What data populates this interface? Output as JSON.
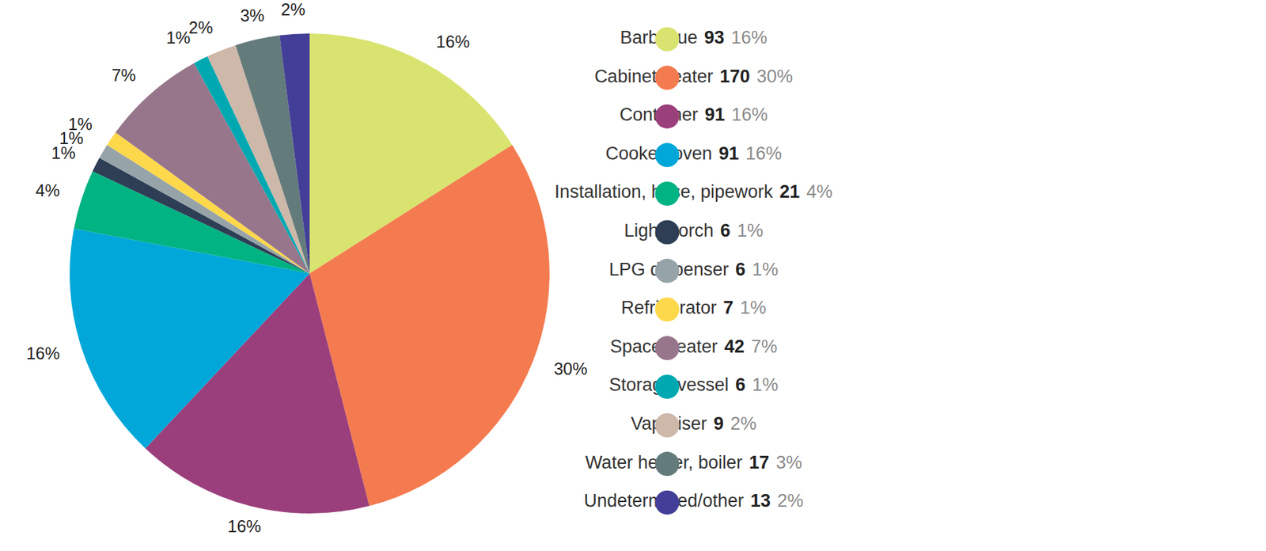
{
  "chart_data": {
    "type": "pie",
    "categories": [
      "Barbecue",
      "Cabinet heater",
      "Container",
      "Cooker, oven",
      "Installation, hose, pipework",
      "Light, torch",
      "LPG dispenser",
      "Refrigerator",
      "Space heater",
      "Storage vessel",
      "Vaporiser",
      "Water heater, boiler",
      "Undetermined/other"
    ],
    "values": [
      16,
      30,
      16,
      16,
      4,
      1,
      1,
      1,
      7,
      1,
      2,
      3,
      2
    ],
    "value_labels": [
      "16%",
      "30%",
      "16%",
      "16%",
      "4%",
      "1%",
      "1%",
      "1%",
      "7%",
      "1%",
      "2%",
      "3%",
      "2%"
    ],
    "counts": [
      93,
      170,
      91,
      91,
      21,
      6,
      6,
      7,
      42,
      6,
      9,
      17,
      13
    ],
    "colors": [
      "#d9e36f",
      "#f47b4f",
      "#9b3f7c",
      "#00a7d8",
      "#00b383",
      "#2d3e55",
      "#96a3a9",
      "#fdd84b",
      "#97768c",
      "#00a9b1",
      "#cdb8a9",
      "#647b7c",
      "#433f98"
    ],
    "data_labels": true,
    "legend": "right"
  }
}
